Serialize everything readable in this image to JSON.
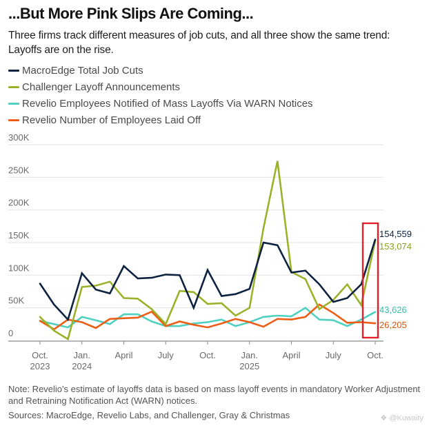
{
  "header": {
    "title": "...But More Pink Slips Are Coming...",
    "subtitle": "Three firms track different measures of job cuts, and all three show the same trend: Layoffs are on the rise."
  },
  "footer": {
    "note": "Note: Revelio's estimate of layoffs data is based on mass layoff events in mandatory Worker Adjustment and Retraining Notification Act (WARN) notices.",
    "sources": "Sources: MacroEdge, Revelio Labs, and Challenger, Gray & Christmas",
    "watermark": "@Kuwaity"
  },
  "highlight": {
    "color": "#e0202a",
    "target": "Oct. 2025"
  },
  "chart_data": {
    "type": "line",
    "title": "...But More Pink Slips Are Coming...",
    "xlabel": "",
    "ylabel": "",
    "ylim": [
      0,
      300000
    ],
    "grid": true,
    "legend_position": "top-left",
    "y_ticks": [
      {
        "value": 0,
        "label": "0"
      },
      {
        "value": 50000,
        "label": "50K"
      },
      {
        "value": 100000,
        "label": "100K"
      },
      {
        "value": 150000,
        "label": "150K"
      },
      {
        "value": 200000,
        "label": "200K"
      },
      {
        "value": 250000,
        "label": "250K"
      },
      {
        "value": 300000,
        "label": "300K"
      }
    ],
    "x": [
      "2023-10",
      "2023-11",
      "2023-12",
      "2024-01",
      "2024-02",
      "2024-03",
      "2024-04",
      "2024-05",
      "2024-06",
      "2024-07",
      "2024-08",
      "2024-09",
      "2024-10",
      "2024-11",
      "2024-12",
      "2025-01",
      "2025-02",
      "2025-03",
      "2025-04",
      "2025-05",
      "2025-06",
      "2025-07",
      "2025-08",
      "2025-09",
      "2025-10"
    ],
    "x_ticks": [
      {
        "index": 0,
        "line1": "Oct.",
        "line2": "2023"
      },
      {
        "index": 3,
        "line1": "Jan.",
        "line2": "2024"
      },
      {
        "index": 6,
        "line1": "April",
        "line2": ""
      },
      {
        "index": 9,
        "line1": "July",
        "line2": ""
      },
      {
        "index": 12,
        "line1": "Oct.",
        "line2": ""
      },
      {
        "index": 15,
        "line1": "Jan.",
        "line2": "2025"
      },
      {
        "index": 18,
        "line1": "April",
        "line2": ""
      },
      {
        "index": 21,
        "line1": "July",
        "line2": ""
      },
      {
        "index": 24,
        "line1": "Oct.",
        "line2": ""
      }
    ],
    "series": [
      {
        "name": "MacroEdge Total Job Cuts",
        "color": "#0d2240",
        "end_label": "154,559",
        "values": [
          87000,
          55000,
          32000,
          103000,
          78000,
          72000,
          114000,
          95000,
          96000,
          101000,
          100000,
          50000,
          108000,
          68000,
          71000,
          79000,
          150000,
          146000,
          104000,
          107000,
          86000,
          59000,
          65000,
          86000,
          154559
        ]
      },
      {
        "name": "Challenger Layoff Announcements",
        "color": "#9ab22a",
        "end_label": "153,074",
        "values": [
          36000,
          15000,
          2000,
          82000,
          84000,
          90000,
          65000,
          64000,
          48000,
          25000,
          76000,
          74000,
          56000,
          57000,
          38000,
          50000,
          172000,
          275000,
          105000,
          94000,
          48000,
          62000,
          86000,
          54000,
          153074
        ]
      },
      {
        "name": "Revelio Employees Notified of Mass Layoffs Via WARN Notices",
        "color": "#4fd0c0",
        "end_label": "43,626",
        "values": [
          30000,
          25000,
          20000,
          36000,
          31000,
          25000,
          40000,
          40000,
          29000,
          22000,
          22000,
          26000,
          28000,
          32000,
          22000,
          28000,
          36000,
          38000,
          37000,
          50000,
          32000,
          31000,
          22000,
          32000,
          43626
        ]
      },
      {
        "name": "Revelio Number of Employees Laid Off",
        "color": "#ee5d14",
        "end_label": "26,205",
        "values": [
          30000,
          17000,
          32000,
          28000,
          19000,
          33000,
          34000,
          35000,
          44000,
          22000,
          29000,
          24000,
          20000,
          26000,
          33000,
          28000,
          21000,
          33000,
          32000,
          36000,
          55000,
          42000,
          27000,
          28000,
          26205
        ]
      }
    ]
  }
}
